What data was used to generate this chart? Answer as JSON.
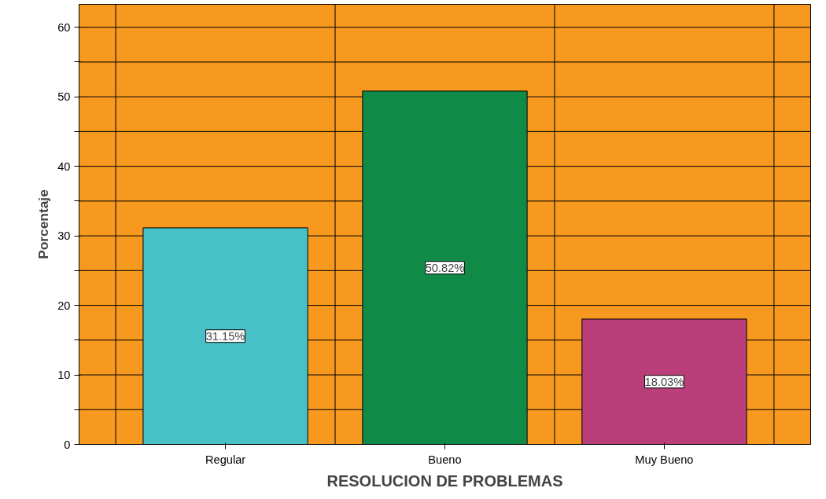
{
  "chart_data": {
    "type": "bar",
    "xlabel": "RESOLUCION DE PROBLEMAS",
    "ylabel": "Porcentaje",
    "categories": [
      "Regular",
      "Bueno",
      "Muy Bueno"
    ],
    "values": [
      31.15,
      50.82,
      18.03
    ],
    "colors": [
      "#48c1c6",
      "#108b47",
      "#b93e7a"
    ],
    "value_labels": [
      "31.15%",
      "50.82%",
      "18.03%"
    ],
    "ylim": [
      0,
      63.3
    ],
    "yticks": [
      0,
      {
        "value": 5,
        "label": null
      },
      10,
      {
        "value": 15,
        "label": null
      },
      20,
      {
        "value": 25,
        "label": null
      },
      30,
      {
        "value": 35,
        "label": null
      },
      40,
      {
        "value": 45,
        "label": null
      },
      50,
      {
        "value": 55,
        "label": null
      },
      60
    ],
    "grid": true
  }
}
